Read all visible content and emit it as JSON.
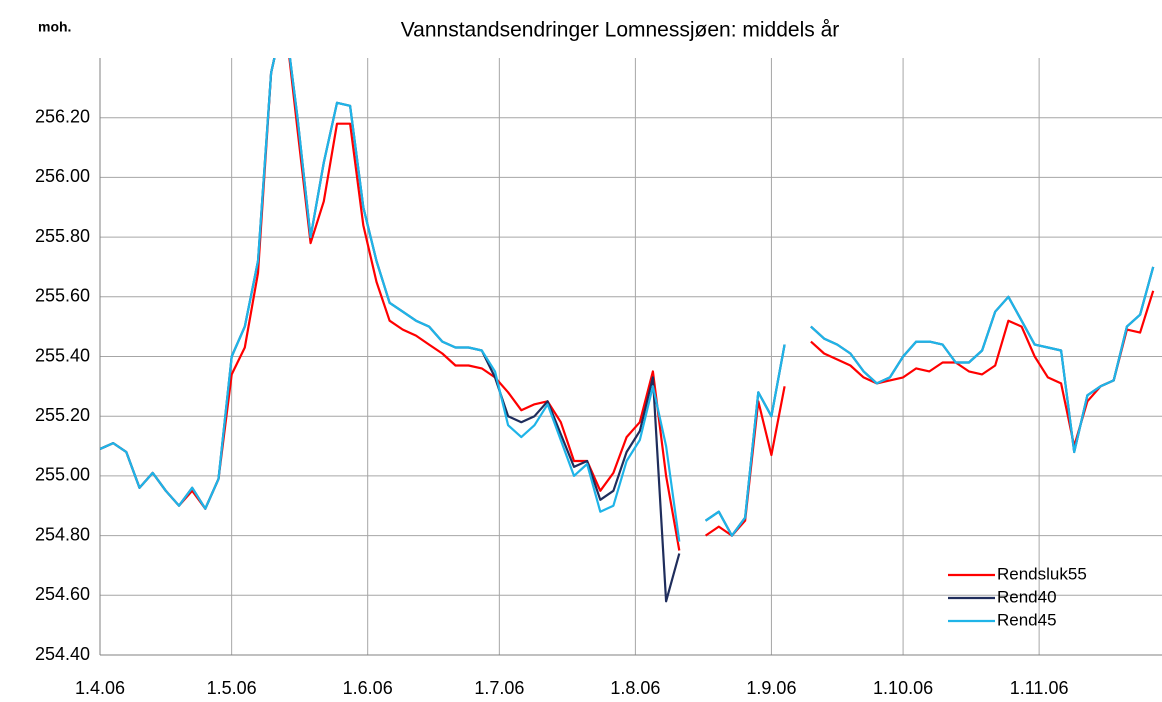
{
  "chart_data": {
    "type": "line",
    "title": "Vannstandsendringer Lomnessjøen: middels år",
    "y_label": "moh.",
    "x": [
      "1.4.06",
      "4.4.06",
      "7.4.06",
      "10.4.06",
      "13.4.06",
      "16.4.06",
      "19.4.06",
      "22.4.06",
      "25.4.06",
      "28.4.06",
      "1.5.06",
      "4.5.06",
      "7.5.06",
      "10.5.06",
      "13.5.06",
      "16.5.06",
      "19.5.06",
      "22.5.06",
      "25.5.06",
      "28.5.06",
      "31.5.06",
      "3.6.06",
      "6.6.06",
      "9.6.06",
      "12.6.06",
      "15.6.06",
      "18.6.06",
      "21.6.06",
      "24.6.06",
      "27.6.06",
      "30.6.06",
      "3.7.06",
      "6.7.06",
      "9.7.06",
      "12.7.06",
      "15.7.06",
      "18.7.06",
      "21.7.06",
      "24.7.06",
      "27.7.06",
      "30.7.06",
      "2.8.06",
      "5.8.06",
      "8.8.06",
      "11.8.06",
      "14.8.06",
      "17.8.06",
      "20.8.06",
      "23.8.06",
      "26.8.06",
      "29.8.06",
      "1.9.06",
      "4.9.06",
      "7.9.06",
      "10.9.06",
      "13.9.06",
      "16.9.06",
      "19.9.06",
      "22.9.06",
      "25.9.06",
      "28.9.06",
      "1.10.06",
      "4.10.06",
      "7.10.06",
      "10.10.06",
      "13.10.06",
      "16.10.06",
      "19.10.06",
      "22.10.06",
      "25.10.06",
      "28.10.06",
      "31.10.06",
      "3.11.06",
      "6.11.06",
      "9.11.06",
      "12.11.06",
      "15.11.06",
      "18.11.06",
      "21.11.06",
      "24.11.06",
      "27.11.06"
    ],
    "series": [
      {
        "name": "Rendsluk55",
        "color": "#ff0000",
        "values": [
          255.09,
          255.11,
          255.08,
          254.96,
          255.01,
          254.95,
          254.9,
          254.95,
          254.89,
          254.99,
          255.34,
          255.43,
          255.68,
          256.35,
          256.55,
          256.16,
          255.78,
          255.92,
          256.18,
          256.18,
          255.84,
          255.65,
          255.52,
          255.49,
          255.47,
          255.44,
          255.41,
          255.37,
          255.37,
          255.36,
          255.33,
          255.28,
          255.22,
          255.24,
          255.25,
          255.18,
          255.05,
          255.05,
          254.95,
          255.01,
          255.13,
          255.18,
          255.35,
          255.0,
          254.75,
          null,
          254.8,
          254.83,
          254.8,
          254.85,
          255.25,
          255.07,
          255.3,
          null,
          255.45,
          255.41,
          255.39,
          255.37,
          255.33,
          255.31,
          255.32,
          255.33,
          255.36,
          255.35,
          255.38,
          255.38,
          255.35,
          255.34,
          255.37,
          255.52,
          255.5,
          255.4,
          255.33,
          255.31,
          255.1,
          255.25,
          255.3,
          255.32,
          255.49,
          255.48,
          255.62
        ]
      },
      {
        "name": "Rend40",
        "color": "#1f2d5c",
        "values": [
          255.09,
          255.11,
          255.08,
          254.96,
          255.01,
          254.95,
          254.9,
          254.96,
          254.89,
          254.99,
          255.4,
          255.5,
          255.72,
          256.35,
          256.55,
          256.2,
          255.8,
          256.05,
          256.25,
          256.24,
          255.9,
          255.72,
          255.58,
          255.55,
          255.52,
          255.5,
          255.45,
          255.43,
          255.43,
          255.42,
          255.33,
          255.2,
          255.18,
          255.2,
          255.25,
          255.14,
          255.03,
          255.05,
          254.92,
          254.95,
          255.08,
          255.15,
          255.33,
          254.58,
          254.74,
          null,
          254.85,
          254.88,
          254.8,
          254.86,
          255.28,
          255.2,
          255.44,
          null,
          255.5,
          255.46,
          255.44,
          255.41,
          255.35,
          255.31,
          255.33,
          255.4,
          255.45,
          255.45,
          255.44,
          255.38,
          255.38,
          255.42,
          255.55,
          255.6,
          255.52,
          255.44,
          255.43,
          255.42,
          255.08,
          255.27,
          255.3,
          255.32,
          255.5,
          255.54,
          255.7
        ]
      },
      {
        "name": "Rend45",
        "color": "#1fb4e8",
        "values": [
          255.09,
          255.11,
          255.08,
          254.96,
          255.01,
          254.95,
          254.9,
          254.96,
          254.89,
          254.99,
          255.4,
          255.5,
          255.72,
          256.35,
          256.55,
          256.2,
          255.8,
          256.05,
          256.25,
          256.24,
          255.9,
          255.72,
          255.58,
          255.55,
          255.52,
          255.5,
          255.45,
          255.43,
          255.43,
          255.42,
          255.35,
          255.17,
          255.13,
          255.17,
          255.24,
          255.12,
          255.0,
          255.04,
          254.88,
          254.9,
          255.05,
          255.12,
          255.3,
          255.1,
          254.78,
          null,
          254.85,
          254.88,
          254.8,
          254.86,
          255.28,
          255.2,
          255.44,
          null,
          255.5,
          255.46,
          255.44,
          255.41,
          255.35,
          255.31,
          255.33,
          255.4,
          255.45,
          255.45,
          255.44,
          255.38,
          255.38,
          255.42,
          255.55,
          255.6,
          255.52,
          255.44,
          255.43,
          255.42,
          255.08,
          255.27,
          255.3,
          255.32,
          255.5,
          255.54,
          255.7
        ]
      }
    ],
    "xlim": [
      "1.4.06",
      "29.11.06"
    ],
    "xticks": [
      "1.4.06",
      "1.5.06",
      "1.6.06",
      "1.7.06",
      "1.8.06",
      "1.9.06",
      "1.10.06",
      "1.11.06"
    ],
    "ylim": [
      254.4,
      256.4
    ],
    "yticks": [
      {
        "value": 254.4,
        "label": "254.40"
      },
      {
        "value": 254.6,
        "label": "254.60"
      },
      {
        "value": 254.8,
        "label": "254.80"
      },
      {
        "value": 255.0,
        "label": "255.00"
      },
      {
        "value": 255.2,
        "label": "255.20"
      },
      {
        "value": 255.4,
        "label": "255.40"
      },
      {
        "value": 255.6,
        "label": "255.60"
      },
      {
        "value": 255.8,
        "label": "255.80"
      },
      {
        "value": 256.0,
        "label": "256.00"
      },
      {
        "value": 256.2,
        "label": "256.20"
      }
    ],
    "grid": true,
    "legend": "lower right"
  }
}
